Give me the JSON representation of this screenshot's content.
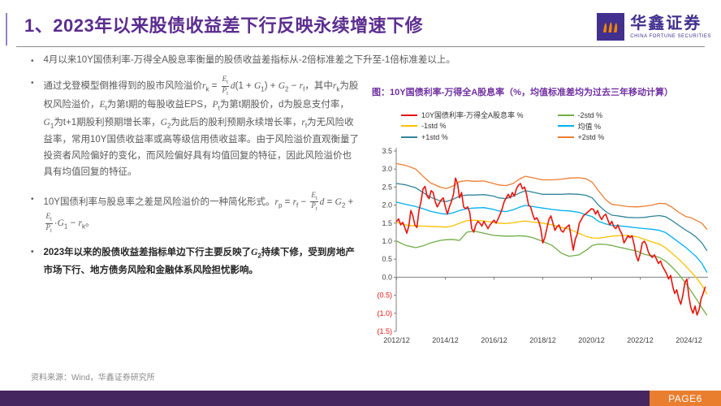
{
  "header": {
    "title": "1、2023年以来股债收益差下行反映永续增速下修",
    "logo_cn": "华鑫证券",
    "logo_en": "CHINA FORTUNE SECURITIES"
  },
  "bullet_marker": "•",
  "bullets": [
    {
      "html": "4月以来10Y国债利率-万得全A股息率衡量的股债收益差指标从-2倍标准差之下升至-1倍标准差以上。"
    },
    {
      "html": "通过戈登模型倒推得到的股市风险溢价<i>r</i><sub>k</sub> = <span class='frac'><span class='num'><i>E</i><sub>t</sub></span><span class='den'><i>P</i><sub>t</sub></span></span><i>d</i>(1 + <i>G</i><sub>1</sub>) + <i>G</i><sub>2</sub> − <i>r</i><sub>f</sub>，其中<i>r</i><sub>k</sub>为股权风险溢价，<i>E</i><sub>t</sub>为第t期的每股收益EPS，<i>P</i><sub>t</sub>为第t期股价，d为股息支付率，<i>G</i><sub>1</sub>为t+1期股利预期增长率，<i>G</i><sub>2</sub>为此后的股利预期永续增长率，<i>r</i><sub>f</sub>为无风险收益率，常用10Y国债收益率或高等级信用债收益率。由于风险溢价直观衡量了投资者风险偏好的变化，而风险偏好具有均值回复的特征，因此风险溢价也具有均值回复的特征。"
    },
    {
      "html": "10Y国债利率与股息率之差是风险溢价的一种简化形式。<i>r</i><sub>p</sub> = <i>r</i><sub>f</sub> − <span class='frac'><span class='num'><i>E</i><sub>t</sub></span><span class='den'><i>P</i><sub>t</sub></span></span><i>d</i> = <i>G</i><sub>2</sub> + <span class='frac'><span class='num'><i>E</i><sub>t</sub></span><span class='den'><i>P</i><sub>t</sub></span></span>·<i>G</i><sub>1</sub> − <i>r</i><sub>k</sub>。"
    },
    {
      "html": "2023年以来的股债收益差指标单边下行主要反映了<i>G</i><sub>2</sub>持续下修，受到房地产市场下行、地方债务风险和金融体系风险担忧影响。"
    }
  ],
  "chart_data": {
    "type": "line",
    "display_title": "图：10Y国债利率-万得全A股息率（%，均值标准差均为过去三年移动计算）",
    "title": "10Y国债利率-万得全A股息率（%，均值标准差均为过去三年移动计算）",
    "xlabel": "",
    "ylabel": "%",
    "legend_position": "top",
    "grid": false,
    "x_range": [
      2012.9,
      2025.7
    ],
    "y_range": [
      -1.5,
      3.5
    ],
    "y_ticks": [
      {
        "value": 3.5,
        "label": "3.5"
      },
      {
        "value": 3.0,
        "label": "3.0"
      },
      {
        "value": 2.5,
        "label": "2.5"
      },
      {
        "value": 2.0,
        "label": "2.0"
      },
      {
        "value": 1.5,
        "label": "1.5"
      },
      {
        "value": 1.0,
        "label": "1.0"
      },
      {
        "value": 0.5,
        "label": "0.5"
      },
      {
        "value": 0.0,
        "label": "0.0"
      },
      {
        "value": -0.5,
        "label": "(0.5)"
      },
      {
        "value": -1.0,
        "label": "(1.0)"
      },
      {
        "value": -1.5,
        "label": "(1.5)"
      }
    ],
    "x_ticks": [
      {
        "value": 2012.917,
        "label": "2012/12"
      },
      {
        "value": 2014.917,
        "label": "2014/12"
      },
      {
        "value": 2016.917,
        "label": "2016/12"
      },
      {
        "value": 2018.917,
        "label": "2018/12"
      },
      {
        "value": 2020.917,
        "label": "2020/12"
      },
      {
        "value": 2022.917,
        "label": "2022/12"
      },
      {
        "value": 2024.917,
        "label": "2024/12"
      }
    ],
    "series": [
      {
        "name": "10Y国债利率-万得全A股息率 %",
        "color": "#e8130c",
        "width": 1.6,
        "x_start": 2012.917,
        "x_step": 0.08333,
        "y": [
          1.55,
          1.62,
          1.45,
          1.52,
          1.38,
          1.22,
          1.42,
          1.85,
          1.7,
          1.45,
          1.38,
          1.85,
          2.1,
          2.45,
          2.52,
          2.25,
          2.18,
          2.4,
          2.35,
          2.1,
          1.95,
          2.05,
          2.15,
          2.2,
          1.95,
          1.75,
          1.95,
          2.1,
          2.3,
          2.75,
          2.6,
          2.2,
          2.35,
          1.95,
          1.9,
          1.95,
          1.8,
          1.35,
          1.25,
          1.45,
          1.55,
          1.5,
          1.42,
          1.55,
          1.45,
          1.35,
          1.45,
          1.52,
          1.58,
          1.5,
          1.62,
          1.75,
          1.9,
          2.1,
          2.2,
          2.3,
          2.2,
          2.35,
          2.25,
          2.45,
          2.55,
          2.6,
          2.45,
          2.5,
          2.3,
          2.0,
          1.95,
          1.75,
          1.6,
          1.65,
          1.55,
          1.35,
          0.95,
          1.1,
          1.35,
          1.6,
          1.7,
          1.5,
          1.3,
          1.4,
          1.45,
          1.3,
          1.25,
          1.35,
          1.4,
          1.45,
          1.1,
          0.75,
          1.05,
          1.2,
          1.5,
          1.6,
          1.7,
          1.75,
          1.8,
          1.85,
          1.9,
          1.88,
          1.75,
          1.85,
          1.7,
          1.6,
          1.7,
          1.75,
          1.6,
          1.45,
          1.55,
          1.4,
          1.35,
          1.45,
          1.3,
          1.2,
          0.95,
          1.05,
          1.15,
          1.1,
          1.15,
          0.9,
          0.6,
          0.45,
          0.65,
          0.95,
          1.0,
          0.9,
          0.7,
          0.6,
          0.55,
          0.62,
          0.5,
          0.38,
          0.45,
          0.3,
          0.2,
          0.1,
          -0.05,
          0.05,
          -0.25,
          -0.45,
          -0.35,
          -0.6,
          -0.75,
          -0.5,
          -0.15,
          -0.05,
          -0.55,
          -0.85,
          -1.0,
          -0.8,
          -1.05,
          -0.9,
          -0.6,
          -0.45,
          -0.28
        ]
      },
      {
        "name": "-1std %",
        "color": "#ffc000",
        "x": [
          2012.92,
          2013.3,
          2013.7,
          2014.0,
          2014.3,
          2014.7,
          2014.95,
          2015.2,
          2015.5,
          2015.8,
          2016.1,
          2016.5,
          2016.9,
          2017.1,
          2017.4,
          2017.7,
          2017.95,
          2018.2,
          2018.5,
          2018.9,
          2019.3,
          2019.7,
          2020.0,
          2020.4,
          2020.7,
          2020.95,
          2021.2,
          2021.5,
          2021.75,
          2022.0,
          2022.4,
          2022.8,
          2023.1,
          2023.4,
          2023.7,
          2023.95,
          2024.2,
          2024.5,
          2024.8,
          2025.0,
          2025.2,
          2025.45,
          2025.65
        ],
        "y": [
          1.52,
          1.45,
          1.42,
          1.42,
          1.41,
          1.4,
          1.39,
          1.42,
          1.5,
          1.57,
          1.58,
          1.56,
          1.52,
          1.5,
          1.49,
          1.51,
          1.54,
          1.56,
          1.53,
          1.5,
          1.45,
          1.38,
          1.33,
          1.22,
          1.13,
          1.09,
          1.08,
          1.11,
          1.14,
          1.15,
          1.16,
          1.12,
          1.05,
          0.98,
          0.92,
          0.82,
          0.68,
          0.5,
          0.3,
          0.15,
          0.0,
          -0.22,
          -0.46
        ]
      },
      {
        "name": "+1std %",
        "color": "#31849b",
        "x": [
          2012.92,
          2013.3,
          2013.7,
          2014.0,
          2014.3,
          2014.7,
          2014.95,
          2015.2,
          2015.5,
          2015.8,
          2016.1,
          2016.5,
          2016.9,
          2017.1,
          2017.4,
          2017.7,
          2017.95,
          2018.2,
          2018.5,
          2018.9,
          2019.3,
          2019.7,
          2020.0,
          2020.4,
          2020.7,
          2020.95,
          2021.2,
          2021.5,
          2021.75,
          2022.0,
          2022.4,
          2022.8,
          2023.1,
          2023.4,
          2023.7,
          2023.95,
          2024.2,
          2024.5,
          2024.8,
          2025.0,
          2025.2,
          2025.45,
          2025.65
        ],
        "y": [
          2.6,
          2.56,
          2.48,
          2.35,
          2.22,
          2.12,
          2.1,
          2.15,
          2.25,
          2.28,
          2.28,
          2.29,
          2.25,
          2.2,
          2.18,
          2.25,
          2.33,
          2.4,
          2.36,
          2.3,
          2.3,
          2.3,
          2.31,
          2.3,
          2.27,
          2.2,
          2.0,
          1.82,
          1.72,
          1.7,
          1.66,
          1.65,
          1.66,
          1.69,
          1.71,
          1.68,
          1.58,
          1.44,
          1.3,
          1.22,
          1.12,
          0.95,
          0.74
        ]
      },
      {
        "name": "-2std %",
        "color": "#70ad47",
        "x": [
          2012.92,
          2013.3,
          2013.7,
          2014.0,
          2014.3,
          2014.7,
          2014.95,
          2015.2,
          2015.5,
          2015.8,
          2016.1,
          2016.5,
          2016.9,
          2017.1,
          2017.4,
          2017.7,
          2017.95,
          2018.2,
          2018.5,
          2018.9,
          2019.3,
          2019.7,
          2020.0,
          2020.4,
          2020.7,
          2020.95,
          2021.2,
          2021.5,
          2021.75,
          2022.0,
          2022.4,
          2022.8,
          2023.1,
          2023.4,
          2023.7,
          2023.95,
          2024.2,
          2024.5,
          2024.8,
          2025.0,
          2025.2,
          2025.45,
          2025.65
        ],
        "y": [
          1.0,
          0.88,
          0.82,
          0.87,
          0.95,
          1.02,
          1.04,
          1.05,
          1.02,
          1.25,
          1.28,
          1.22,
          1.16,
          1.15,
          1.14,
          1.14,
          1.15,
          1.14,
          1.1,
          1.0,
          0.88,
          0.66,
          0.58,
          0.62,
          0.75,
          0.88,
          0.92,
          0.91,
          0.88,
          0.84,
          0.78,
          0.72,
          0.63,
          0.6,
          0.55,
          0.45,
          0.3,
          0.08,
          -0.18,
          -0.38,
          -0.58,
          -0.85,
          -1.05
        ]
      },
      {
        "name": "均值 %",
        "color": "#00b0f0",
        "x": [
          2012.92,
          2013.3,
          2013.7,
          2014.0,
          2014.3,
          2014.7,
          2014.95,
          2015.2,
          2015.5,
          2015.8,
          2016.1,
          2016.5,
          2016.9,
          2017.1,
          2017.4,
          2017.7,
          2017.95,
          2018.2,
          2018.5,
          2018.9,
          2019.3,
          2019.7,
          2020.0,
          2020.4,
          2020.7,
          2020.95,
          2021.2,
          2021.5,
          2021.75,
          2022.0,
          2022.4,
          2022.8,
          2023.1,
          2023.4,
          2023.7,
          2023.95,
          2024.2,
          2024.5,
          2024.8,
          2025.0,
          2025.2,
          2025.45,
          2025.65
        ],
        "y": [
          2.08,
          2.02,
          1.96,
          1.9,
          1.83,
          1.77,
          1.75,
          1.78,
          1.85,
          1.9,
          1.92,
          1.93,
          1.88,
          1.84,
          1.82,
          1.87,
          1.94,
          1.99,
          1.96,
          1.92,
          1.88,
          1.85,
          1.84,
          1.8,
          1.73,
          1.68,
          1.55,
          1.48,
          1.44,
          1.43,
          1.4,
          1.37,
          1.35,
          1.33,
          1.3,
          1.24,
          1.12,
          0.97,
          0.82,
          0.7,
          0.58,
          0.38,
          0.14
        ]
      },
      {
        "name": "+2std %",
        "color": "#ed7d31",
        "x": [
          2012.92,
          2013.3,
          2013.7,
          2014.0,
          2014.3,
          2014.7,
          2014.95,
          2015.2,
          2015.5,
          2015.8,
          2016.1,
          2016.5,
          2016.9,
          2017.1,
          2017.4,
          2017.7,
          2017.95,
          2018.2,
          2018.5,
          2018.9,
          2019.3,
          2019.7,
          2020.0,
          2020.4,
          2020.7,
          2020.95,
          2021.2,
          2021.5,
          2021.75,
          2022.0,
          2022.4,
          2022.8,
          2023.1,
          2023.4,
          2023.7,
          2023.95,
          2024.2,
          2024.5,
          2024.8,
          2025.0,
          2025.2,
          2025.45,
          2025.65
        ],
        "y": [
          3.15,
          3.1,
          3.0,
          2.8,
          2.62,
          2.5,
          2.46,
          2.52,
          2.65,
          2.68,
          2.66,
          2.67,
          2.6,
          2.56,
          2.54,
          2.6,
          2.72,
          2.8,
          2.76,
          2.7,
          2.7,
          2.72,
          2.75,
          2.76,
          2.73,
          2.63,
          2.4,
          2.15,
          2.02,
          2.0,
          1.96,
          1.95,
          1.97,
          2.0,
          2.05,
          2.04,
          1.95,
          1.8,
          1.68,
          1.65,
          1.58,
          1.5,
          1.33
        ]
      }
    ]
  },
  "footer": {
    "source": "资料来源：Wind，华鑫证券研究所",
    "page": "PAGE6"
  },
  "colors": {
    "title_purple": "#5b2d8f",
    "chart_title_purple": "#7030a0",
    "footer_purple": "#46265f",
    "page_orange": "#e87e2e",
    "negative_tick_red": "#e8130c"
  }
}
